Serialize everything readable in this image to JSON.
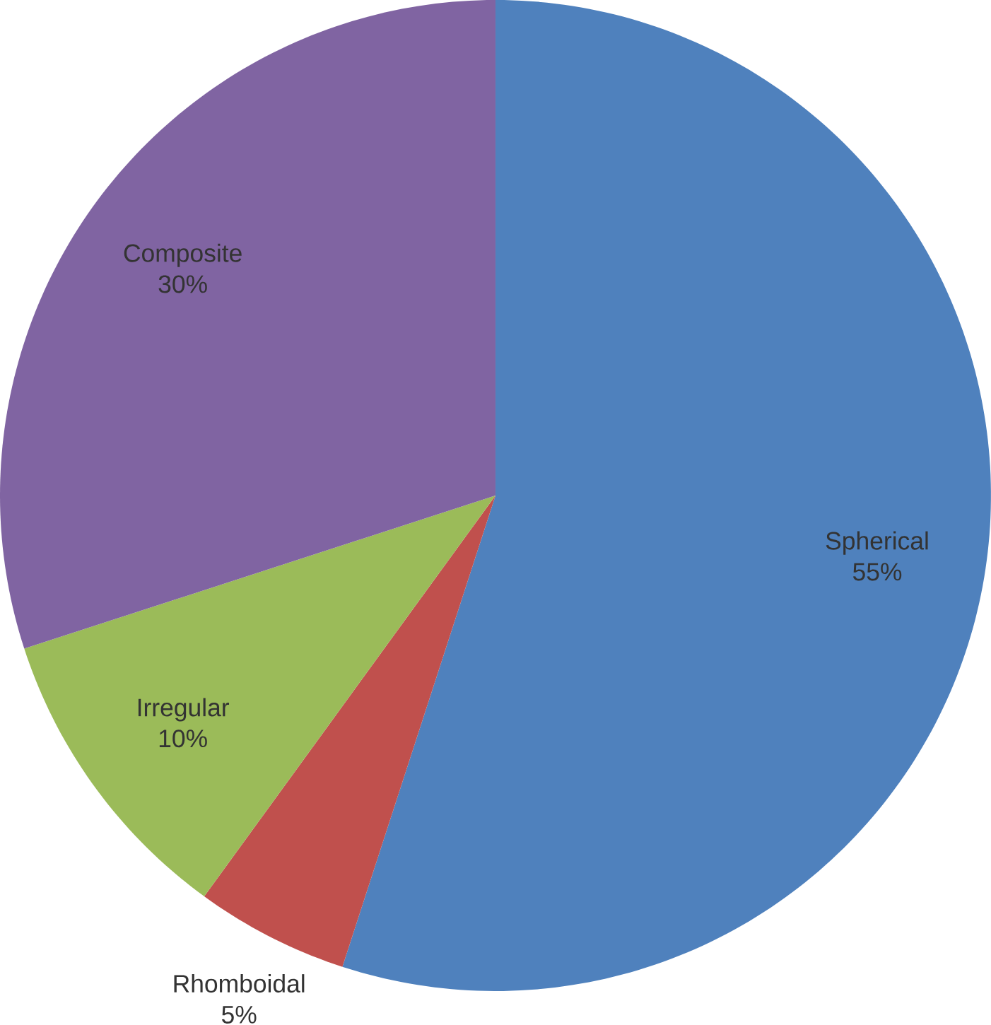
{
  "chart_data": {
    "type": "pie",
    "categories": [
      "Spherical",
      "Rhomboidal",
      "Irregular",
      "Composite"
    ],
    "values": [
      55,
      5,
      10,
      30
    ],
    "value_labels": [
      "55%",
      "5%",
      "10%",
      "30%"
    ],
    "colors": [
      "#4f81bd",
      "#c0504d",
      "#9bbb59",
      "#8064a2"
    ]
  }
}
